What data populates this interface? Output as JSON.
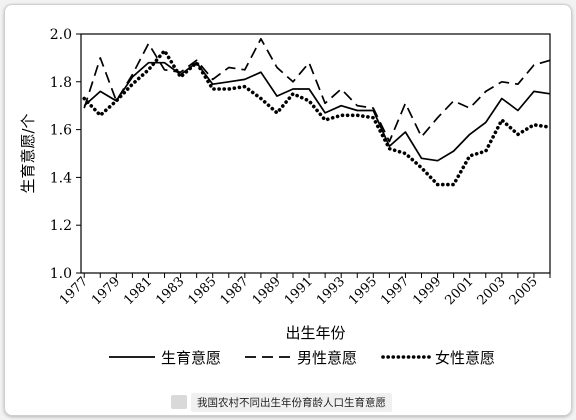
{
  "chart_data": {
    "type": "line",
    "title": "",
    "xlabel": "出生年份",
    "ylabel": "生育意愿/个",
    "x": [
      1977,
      1978,
      1979,
      1980,
      1981,
      1982,
      1983,
      1984,
      1985,
      1986,
      1987,
      1988,
      1989,
      1990,
      1991,
      1992,
      1993,
      1994,
      1995,
      1996,
      1997,
      1998,
      1999,
      2000,
      2001,
      2002,
      2003,
      2004,
      2005,
      2006
    ],
    "xticks": [
      "1977",
      "1979",
      "1981",
      "1983",
      "1985",
      "1987",
      "1989",
      "1991",
      "1993",
      "1995",
      "1997",
      "1999",
      "2001",
      "2003",
      "2005"
    ],
    "yticks": [
      "1.0",
      "1.2",
      "1.4",
      "1.6",
      "1.8",
      "2.0"
    ],
    "ylim": [
      1.0,
      2.0
    ],
    "xlim": [
      1976.8,
      2006
    ],
    "grid": false,
    "legend_position": "bottom",
    "series": [
      {
        "name": "生育意愿",
        "style": "solid",
        "values": [
          1.7,
          1.76,
          1.72,
          1.82,
          1.88,
          1.88,
          1.83,
          1.88,
          1.79,
          1.8,
          1.81,
          1.84,
          1.74,
          1.77,
          1.77,
          1.67,
          1.7,
          1.68,
          1.68,
          1.53,
          1.59,
          1.48,
          1.47,
          1.51,
          1.58,
          1.63,
          1.73,
          1.68,
          1.76,
          1.75
        ]
      },
      {
        "name": "男性意愿",
        "style": "dashed",
        "values": [
          1.69,
          1.9,
          1.72,
          1.83,
          1.96,
          1.85,
          1.84,
          1.89,
          1.81,
          1.86,
          1.85,
          1.98,
          1.86,
          1.8,
          1.88,
          1.71,
          1.77,
          1.7,
          1.69,
          1.55,
          1.71,
          1.57,
          1.65,
          1.72,
          1.69,
          1.76,
          1.8,
          1.79,
          1.87,
          1.89
        ]
      },
      {
        "name": "女性意愿",
        "style": "dotted",
        "values": [
          1.73,
          1.66,
          1.72,
          1.79,
          1.85,
          1.93,
          1.82,
          1.88,
          1.77,
          1.77,
          1.78,
          1.73,
          1.67,
          1.75,
          1.72,
          1.64,
          1.66,
          1.66,
          1.65,
          1.52,
          1.5,
          1.44,
          1.37,
          1.37,
          1.49,
          1.51,
          1.64,
          1.58,
          1.62,
          1.61
        ]
      }
    ]
  },
  "caption": {
    "text": "我国农村不同出生年份育龄人口生育意愿"
  }
}
